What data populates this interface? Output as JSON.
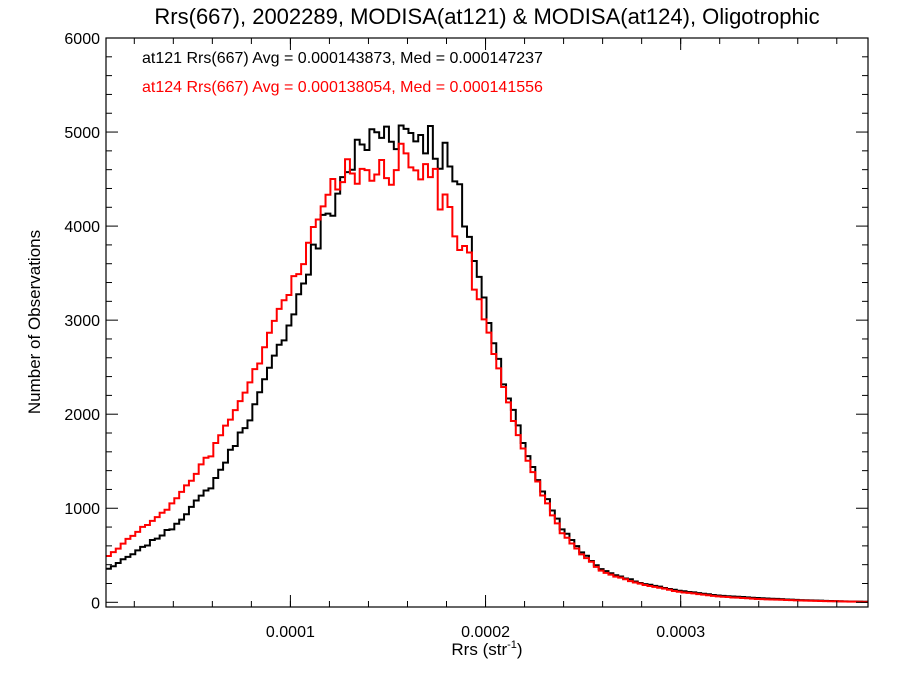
{
  "chart_data": {
    "type": "histogram-step",
    "title": "Rrs(667), 2002289, MODISA(at121) & MODISA(at124), Oligotrophic",
    "xlabel_base": "Rrs (str",
    "xlabel_sup": "-1",
    "xlabel_close": ")",
    "ylabel": "Number of Observations",
    "xlim": [
      5.5e-06,
      0.000396
    ],
    "ylim": [
      -50,
      6000
    ],
    "x_ticks": [
      0.0001,
      0.0002,
      0.0003
    ],
    "x_tick_labels": [
      "0.0001",
      "0.0002",
      "0.0003"
    ],
    "y_ticks": [
      0,
      1000,
      2000,
      3000,
      4000,
      5000,
      6000
    ],
    "y_tick_labels": [
      "0",
      "1000",
      "2000",
      "3000",
      "4000",
      "5000",
      "6000"
    ],
    "bin_width": 2.5e-06,
    "stats": [
      {
        "text": "at121 Rrs(667) Avg = 0.000143873, Med = 0.000147237",
        "color": "#000000"
      },
      {
        "text": "at124 Rrs(667) Avg = 0.000138054, Med = 0.000141556",
        "color": "#ff0000"
      }
    ],
    "series": [
      {
        "id": "at121",
        "color": "#000000",
        "profile_x": [
          5.5e-06,
          2e-05,
          4e-05,
          6e-05,
          8e-05,
          0.0001,
          0.00011,
          0.00012,
          0.00013,
          0.00014,
          0.00015,
          0.00016,
          0.00017,
          0.00018,
          0.00019,
          0.0002,
          0.00021,
          0.00022,
          0.00023,
          0.00024,
          0.00025,
          0.00026,
          0.00028,
          0.0003,
          0.00032,
          0.00034,
          0.00036,
          0.00038,
          0.000396
        ],
        "profile_y": [
          340,
          520,
          800,
          1250,
          2000,
          3000,
          3600,
          4150,
          4650,
          4900,
          5030,
          5020,
          4980,
          4700,
          4050,
          3150,
          2300,
          1650,
          1150,
          760,
          520,
          340,
          200,
          120,
          70,
          45,
          25,
          12,
          5
        ]
      },
      {
        "id": "at124",
        "color": "#ff0000",
        "profile_x": [
          5.5e-06,
          2e-05,
          4e-05,
          6e-05,
          8e-05,
          0.0001,
          0.00011,
          0.00012,
          0.00013,
          0.00014,
          0.00015,
          0.00016,
          0.00017,
          0.00018,
          0.00019,
          0.0002,
          0.00021,
          0.00022,
          0.00023,
          0.00024,
          0.00025,
          0.00026,
          0.00028,
          0.0003,
          0.00032,
          0.00034,
          0.00036,
          0.00038,
          0.000396
        ],
        "profile_y": [
          470,
          720,
          1050,
          1600,
          2350,
          3350,
          3850,
          4300,
          4550,
          4650,
          4650,
          4640,
          4580,
          4280,
          3700,
          2950,
          2200,
          1600,
          1100,
          720,
          500,
          320,
          190,
          110,
          60,
          35,
          20,
          10,
          4
        ]
      }
    ]
  }
}
